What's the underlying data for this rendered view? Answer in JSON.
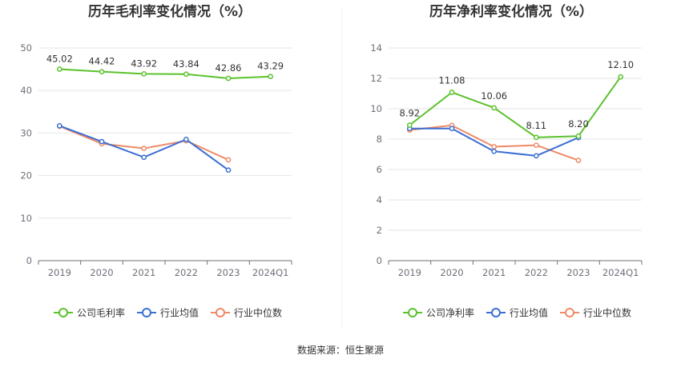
{
  "source": "数据来源：恒生聚源",
  "colors": {
    "company": "#5bc22c",
    "industry_avg": "#3b6fd4",
    "industry_median": "#ee8a66",
    "grid": "#e6e6e6",
    "axis": "#6e7079"
  },
  "chart_data": [
    {
      "type": "line",
      "title": "历年毛利率变化情况（%）",
      "categories": [
        "2019",
        "2020",
        "2021",
        "2022",
        "2023",
        "2024Q1"
      ],
      "ylim": [
        0,
        50
      ],
      "yticks": [
        0,
        10,
        20,
        30,
        40,
        50
      ],
      "grid": true,
      "legend_position": "bottom",
      "series": [
        {
          "name": "公司毛利率",
          "key": "company",
          "values": [
            45.02,
            44.42,
            43.92,
            43.84,
            42.86,
            43.29
          ],
          "labels": [
            "45.02",
            "44.42",
            "43.92",
            "43.84",
            "42.86",
            "43.29"
          ]
        },
        {
          "name": "行业均值",
          "key": "industry_avg",
          "values": [
            31.7,
            28.0,
            24.3,
            28.5,
            21.3,
            null
          ]
        },
        {
          "name": "行业中位数",
          "key": "industry_median",
          "values": [
            31.6,
            27.5,
            26.4,
            28.2,
            23.7,
            null
          ]
        }
      ]
    },
    {
      "type": "line",
      "title": "历年净利率变化情况（%）",
      "categories": [
        "2019",
        "2020",
        "2021",
        "2022",
        "2023",
        "2024Q1"
      ],
      "ylim": [
        0,
        14
      ],
      "yticks": [
        0,
        2,
        4,
        6,
        8,
        10,
        12,
        14
      ],
      "grid": true,
      "legend_position": "bottom",
      "series": [
        {
          "name": "公司净利率",
          "key": "company",
          "values": [
            8.92,
            11.08,
            10.06,
            8.11,
            8.2,
            12.1
          ],
          "labels": [
            "8.92",
            "11.08",
            "10.06",
            "8.11",
            "8.20",
            "12.10"
          ]
        },
        {
          "name": "行业均值",
          "key": "industry_avg",
          "values": [
            8.7,
            8.7,
            7.2,
            6.9,
            8.1,
            null
          ]
        },
        {
          "name": "行业中位数",
          "key": "industry_median",
          "values": [
            8.6,
            8.9,
            7.5,
            7.6,
            6.6,
            null
          ]
        }
      ]
    }
  ]
}
